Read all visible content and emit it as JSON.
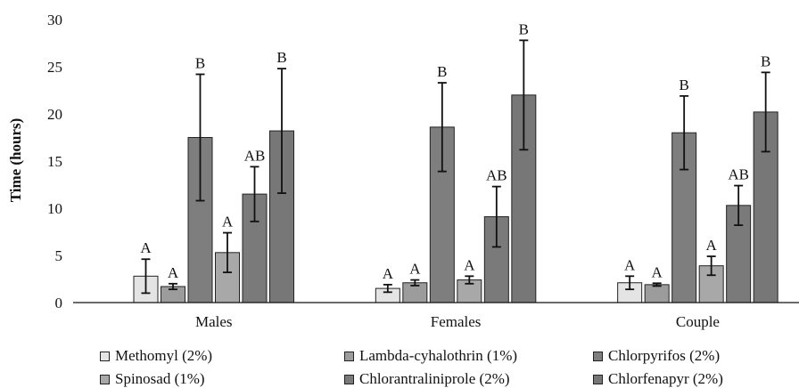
{
  "chart_data": {
    "type": "bar",
    "ylabel": "Time (hours)",
    "ylim": [
      0,
      30
    ],
    "yticks": [
      0,
      5,
      10,
      15,
      20,
      25,
      30
    ],
    "categories": [
      "Males",
      "Females",
      "Couple"
    ],
    "series": [
      {
        "name": "Methomyl (2%)",
        "color": "#e4e4e4",
        "values": [
          2.8,
          1.5,
          2.1
        ],
        "errors": [
          1.8,
          0.4,
          0.7
        ],
        "labels": [
          "A",
          "A",
          "A"
        ]
      },
      {
        "name": "Lambda-cyhalothrin (1%)",
        "color": "#9c9c9c",
        "values": [
          1.7,
          2.1,
          1.9
        ],
        "errors": [
          0.3,
          0.3,
          0.15
        ],
        "labels": [
          "A",
          "A",
          "A"
        ]
      },
      {
        "name": "Chlorpyrifos (2%)",
        "color": "#7e7e7e",
        "values": [
          17.5,
          18.6,
          18.0
        ],
        "errors": [
          6.7,
          4.7,
          3.9
        ],
        "labels": [
          "B",
          "B",
          "B"
        ]
      },
      {
        "name": "Spinosad (1%)",
        "color": "#a8a8a8",
        "values": [
          5.3,
          2.4,
          3.9
        ],
        "errors": [
          2.1,
          0.4,
          1.0
        ],
        "labels": [
          "A",
          "A",
          "A"
        ]
      },
      {
        "name": "Chlorantraliniprole (2%)",
        "color": "#7a7a7a",
        "values": [
          11.5,
          9.1,
          10.3
        ],
        "errors": [
          2.9,
          3.2,
          2.1
        ],
        "labels": [
          "AB",
          "AB",
          "AB"
        ]
      },
      {
        "name": "Chlorfenapyr (2%)",
        "color": "#777777",
        "values": [
          18.2,
          22.0,
          20.2
        ],
        "errors": [
          6.6,
          5.8,
          4.2
        ],
        "labels": [
          "B",
          "B",
          "B"
        ]
      }
    ],
    "legend_position": "bottom",
    "grid": false
  }
}
